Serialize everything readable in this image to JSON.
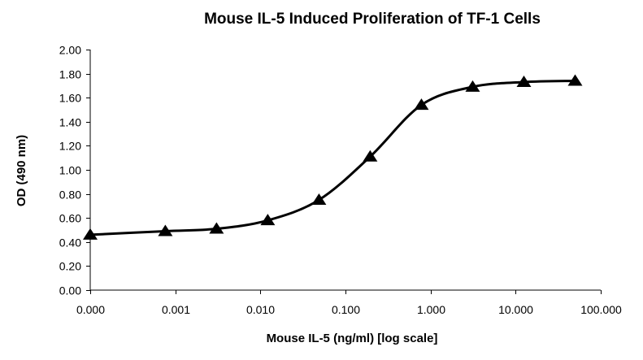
{
  "chart_data": {
    "type": "scatter",
    "title": "Mouse IL-5 Induced Proliferation of TF-1 Cells",
    "xlabel": "Mouse IL-5  (ng/ml) [log scale]",
    "ylabel": "OD (490 nm)",
    "x_scale": "log",
    "x_tick_labels": [
      "0.000",
      "0.001",
      "0.010",
      "0.100",
      "1.000",
      "10.000",
      "100.000"
    ],
    "x_ticks": [
      0.0001,
      0.001,
      0.01,
      0.1,
      1,
      10,
      100
    ],
    "xlim": [
      0.0001,
      100
    ],
    "y_tick_labels": [
      "0.00",
      "0.20",
      "0.40",
      "0.60",
      "0.80",
      "1.00",
      "1.20",
      "1.40",
      "1.60",
      "1.80",
      "2.00"
    ],
    "y_ticks": [
      0,
      0.2,
      0.4,
      0.6,
      0.8,
      1.0,
      1.2,
      1.4,
      1.6,
      1.8,
      2.0
    ],
    "ylim": [
      0,
      2.0
    ],
    "grid": false,
    "legend": "none",
    "marker": "triangle",
    "line": "smooth fitted curve",
    "color": "#000000",
    "series": [
      {
        "x": [
          0.0001,
          0.000763,
          0.00305,
          0.0122,
          0.0488,
          0.195,
          0.781,
          3.125,
          12.5,
          50
        ],
        "y": [
          0.46,
          0.49,
          0.51,
          0.58,
          0.75,
          1.11,
          1.54,
          1.69,
          1.73,
          1.74
        ]
      }
    ]
  }
}
